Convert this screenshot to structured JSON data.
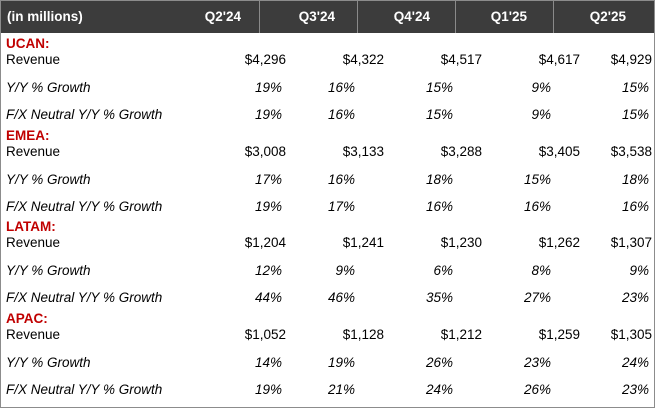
{
  "header": {
    "label": "(in millions)",
    "columns": [
      "Q2'24",
      "Q3'24",
      "Q4'24",
      "Q1'25",
      "Q2'25"
    ]
  },
  "sections": [
    {
      "name": "UCAN:",
      "rows": [
        {
          "label": "Revenue",
          "values": [
            "$4,296",
            "$4,322",
            "$4,517",
            "$4,617",
            "$4,929"
          ]
        },
        {
          "label": "Y/Y % Growth",
          "values": [
            "19%",
            "16%",
            "15%",
            "9%",
            "15%"
          ]
        },
        {
          "label": "F/X Neutral Y/Y % Growth",
          "values": [
            "19%",
            "16%",
            "15%",
            "9%",
            "15%"
          ]
        }
      ]
    },
    {
      "name": "EMEA:",
      "rows": [
        {
          "label": "Revenue",
          "values": [
            "$3,008",
            "$3,133",
            "$3,288",
            "$3,405",
            "$3,538"
          ]
        },
        {
          "label": "Y/Y % Growth",
          "values": [
            "17%",
            "16%",
            "18%",
            "15%",
            "18%"
          ]
        },
        {
          "label": "F/X Neutral Y/Y % Growth",
          "values": [
            "19%",
            "17%",
            "16%",
            "16%",
            "16%"
          ]
        }
      ]
    },
    {
      "name": "LATAM:",
      "rows": [
        {
          "label": "Revenue",
          "values": [
            "$1,204",
            "$1,241",
            "$1,230",
            "$1,262",
            "$1,307"
          ]
        },
        {
          "label": "Y/Y % Growth",
          "values": [
            "12%",
            "9%",
            "6%",
            "8%",
            "9%"
          ]
        },
        {
          "label": "F/X Neutral Y/Y % Growth",
          "values": [
            "44%",
            "46%",
            "35%",
            "27%",
            "23%"
          ]
        }
      ]
    },
    {
      "name": "APAC:",
      "rows": [
        {
          "label": "Revenue",
          "values": [
            "$1,052",
            "$1,128",
            "$1,212",
            "$1,259",
            "$1,305"
          ]
        },
        {
          "label": "Y/Y % Growth",
          "values": [
            "14%",
            "19%",
            "26%",
            "23%",
            "24%"
          ]
        },
        {
          "label": "F/X Neutral Y/Y % Growth",
          "values": [
            "19%",
            "21%",
            "24%",
            "26%",
            "23%"
          ]
        }
      ]
    }
  ]
}
